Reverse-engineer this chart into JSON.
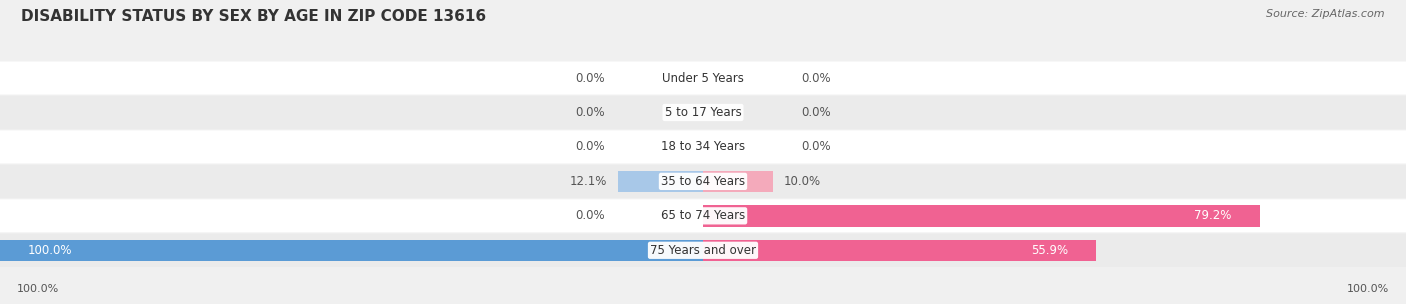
{
  "title": "DISABILITY STATUS BY SEX BY AGE IN ZIP CODE 13616",
  "source": "Source: ZipAtlas.com",
  "categories": [
    "Under 5 Years",
    "5 to 17 Years",
    "18 to 34 Years",
    "35 to 64 Years",
    "65 to 74 Years",
    "75 Years and over"
  ],
  "male_values": [
    0.0,
    0.0,
    0.0,
    12.1,
    0.0,
    100.0
  ],
  "female_values": [
    0.0,
    0.0,
    0.0,
    10.0,
    79.2,
    55.9
  ],
  "male_color_light": "#A8C8E8",
  "male_color_strong": "#5B9BD5",
  "female_color_light": "#F4AABB",
  "female_color_strong": "#F06292",
  "background_color": "#F0F0F0",
  "row_bg_even": "#FFFFFF",
  "row_bg_odd": "#EBEBEB",
  "title_fontsize": 11,
  "label_fontsize": 8.5,
  "value_fontsize": 8.5,
  "tick_fontsize": 8,
  "legend_fontsize": 9,
  "max_val": 100.0
}
